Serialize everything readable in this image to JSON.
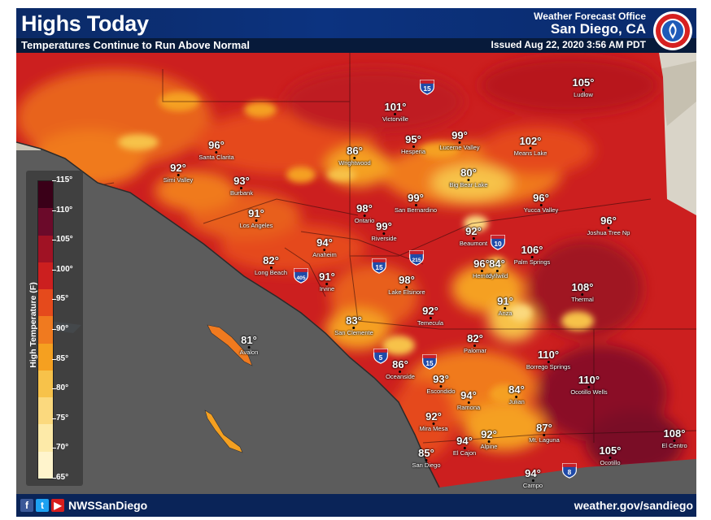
{
  "header": {
    "title": "Highs Today",
    "subtitle": "Temperatures Continue to Run Above Normal",
    "office_label": "Weather Forecast Office",
    "office_name": "San Diego, CA",
    "issued": "Issued Aug 22, 2020 3:56 AM PDT",
    "logo": "nws-logo"
  },
  "legend": {
    "title": "High Temperature (F)",
    "labels": [
      "115°",
      "110°",
      "105°",
      "100°",
      "95°",
      "90°",
      "85°",
      "80°",
      "75°",
      "70°",
      "65°"
    ],
    "colors": [
      "#3a0018",
      "#6b0a2a",
      "#a01224",
      "#cc1f1f",
      "#e54a1c",
      "#f07a1f",
      "#f5a020",
      "#f7c24a",
      "#fbd97e",
      "#fdeaa8",
      "#fff4cc"
    ]
  },
  "cities": [
    {
      "name": "Ludlow",
      "temp": "105°"
    },
    {
      "name": "Victorville",
      "temp": "101°"
    },
    {
      "name": "Hesperia",
      "temp": "95°"
    },
    {
      "name": "Lucerne Valley",
      "temp": "99°"
    },
    {
      "name": "Means Lake",
      "temp": "102°"
    },
    {
      "name": "Santa Clarita",
      "temp": "96°"
    },
    {
      "name": "Wrightwood",
      "temp": "86°"
    },
    {
      "name": "Simi Valley",
      "temp": "92°"
    },
    {
      "name": "Burbank",
      "temp": "93°"
    },
    {
      "name": "Big Bear Lake",
      "temp": "80°"
    },
    {
      "name": "Yucca Valley",
      "temp": "96°"
    },
    {
      "name": "Ontario",
      "temp": "98°"
    },
    {
      "name": "San Bernardino",
      "temp": "99°"
    },
    {
      "name": "Los Angeles",
      "temp": "91°"
    },
    {
      "name": "Riverside",
      "temp": "99°"
    },
    {
      "name": "Joshua Tree Np",
      "temp": "96°"
    },
    {
      "name": "Beaumont",
      "temp": "92°"
    },
    {
      "name": "Anaheim",
      "temp": "94°"
    },
    {
      "name": "Palm Springs",
      "temp": "106°"
    },
    {
      "name": "Long Beach",
      "temp": "82°"
    },
    {
      "name": "Hemet",
      "temp": "96°"
    },
    {
      "name": "Idyllwild",
      "temp": "84°"
    },
    {
      "name": "Irvine",
      "temp": "91°"
    },
    {
      "name": "Lake Elsinore",
      "temp": "98°"
    },
    {
      "name": "Thermal",
      "temp": "108°"
    },
    {
      "name": "Anza",
      "temp": "91°"
    },
    {
      "name": "Temecula",
      "temp": "92°"
    },
    {
      "name": "San Clemente",
      "temp": "83°"
    },
    {
      "name": "Avalon",
      "temp": "81°"
    },
    {
      "name": "Palomar",
      "temp": "82°"
    },
    {
      "name": "Borrego Springs",
      "temp": "110°"
    },
    {
      "name": "Oceanside",
      "temp": "86°"
    },
    {
      "name": "Ocotillo Wells",
      "temp": "110°"
    },
    {
      "name": "Escondido",
      "temp": "93°"
    },
    {
      "name": "Julian",
      "temp": "84°"
    },
    {
      "name": "Ramona",
      "temp": "94°"
    },
    {
      "name": "Mira Mesa",
      "temp": "92°"
    },
    {
      "name": "Mt. Laguna",
      "temp": "87°"
    },
    {
      "name": "El Cajon",
      "temp": "94°"
    },
    {
      "name": "Alpine",
      "temp": "92°"
    },
    {
      "name": "El Centro",
      "temp": "108°"
    },
    {
      "name": "San Diego",
      "temp": "85°"
    },
    {
      "name": "Ocotillo",
      "temp": "105°"
    },
    {
      "name": "Campo",
      "temp": "94°"
    }
  ],
  "highways": [
    {
      "name": "interstate-15-shield",
      "label": "15"
    },
    {
      "name": "interstate-215-shield",
      "label": "215"
    },
    {
      "name": "interstate-10-shield",
      "label": "10"
    },
    {
      "name": "interstate-405-shield",
      "label": "405"
    },
    {
      "name": "interstate-15-shield",
      "label": "15"
    },
    {
      "name": "interstate-5-shield",
      "label": "5"
    },
    {
      "name": "interstate-15-shield",
      "label": "15"
    },
    {
      "name": "interstate-8-shield",
      "label": "8"
    }
  ],
  "footer": {
    "social_icons": [
      "facebook-icon",
      "twitter-icon",
      "youtube-icon"
    ],
    "handle": "NWSSanDiego",
    "website": "weather.gov/sandiego"
  },
  "colors": {
    "header_bg": "#0c3380",
    "ocean": "#5a5a5a",
    "hot": "#cc1f1f",
    "mild": "#f5a020"
  }
}
